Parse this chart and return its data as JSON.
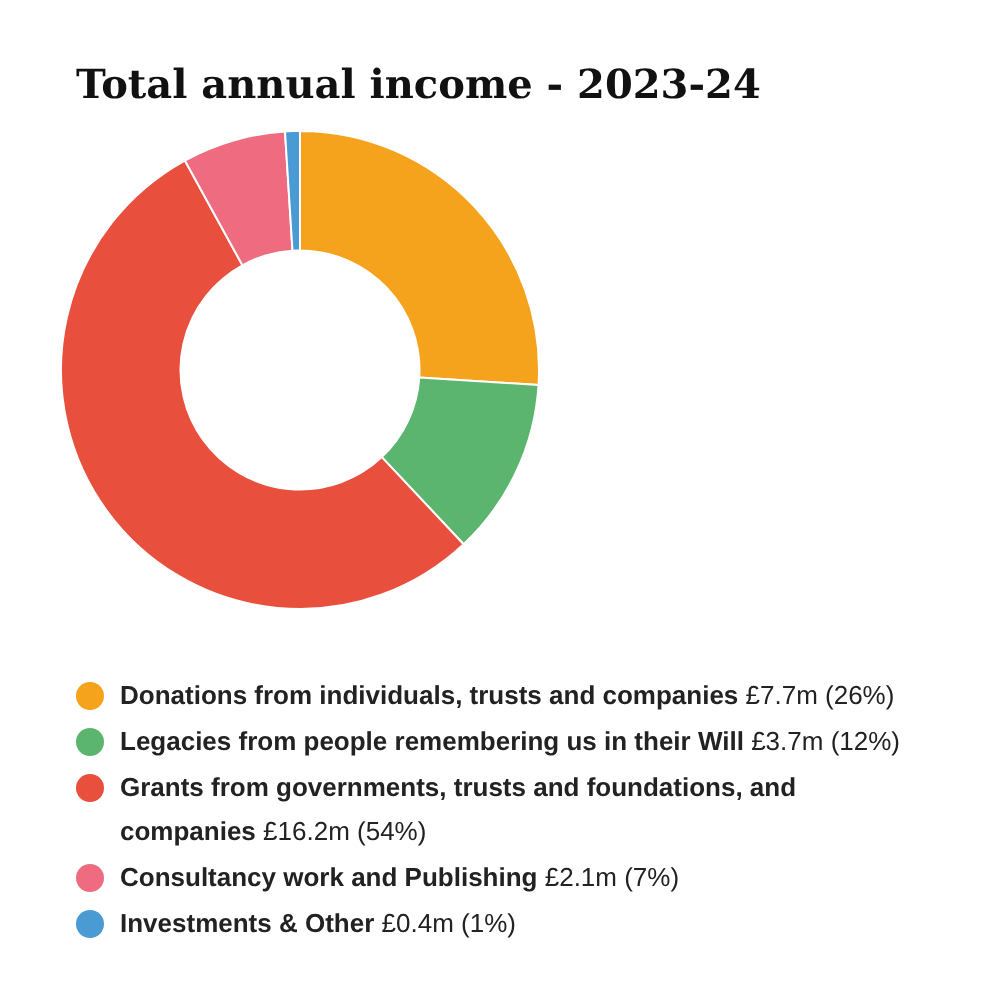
{
  "chart_data": {
    "type": "donut",
    "title": "Total annual income - 2023-24",
    "categories": [
      "Donations from individuals, trusts and companies",
      "Legacies from people remembering us in their Will",
      "Grants from governments, trusts and foundations, and companies",
      "Consultancy work and Publishing",
      "Investments & Other"
    ],
    "values": [
      26,
      12,
      54,
      7,
      1
    ],
    "value_labels": [
      "£7.7m (26%)",
      "£3.7m (12%)",
      "£16.2m (54%)",
      "£2.1m (7%)",
      "£0.4m (1%)"
    ],
    "colors": [
      "#f5a31c",
      "#5bb56e",
      "#e84f3d",
      "#ee6b80",
      "#4a9ad4"
    ],
    "legend": "bottom"
  }
}
